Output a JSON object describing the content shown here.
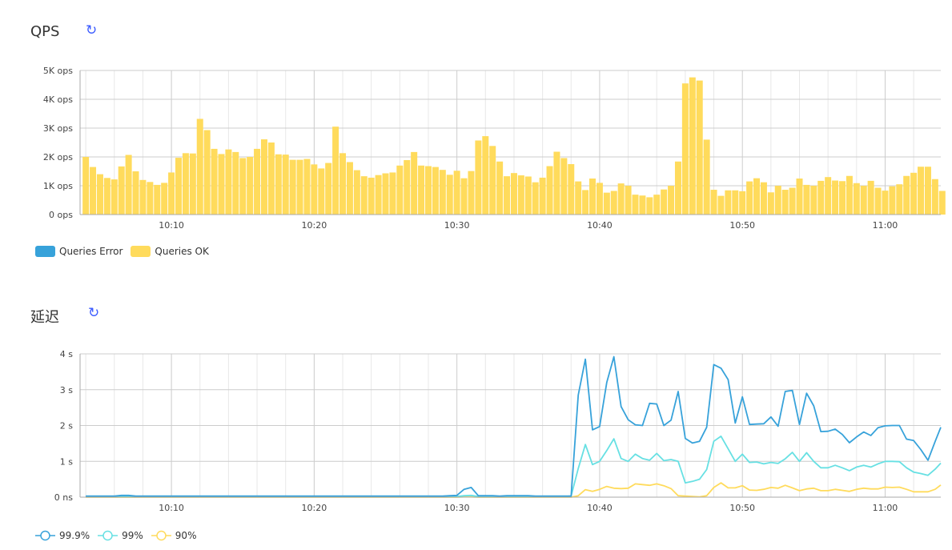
{
  "qps_panel": {
    "title": "QPS",
    "refresh_icon": "refresh-icon"
  },
  "latency_panel": {
    "title": "延迟",
    "refresh_icon": "refresh-icon"
  },
  "chart_data": [
    {
      "type": "bar",
      "title": "QPS",
      "x_ticks": [
        "10:10",
        "10:20",
        "10:30",
        "10:40",
        "10:50",
        "11:00"
      ],
      "xlim": [
        "10:03:36",
        "11:03:54"
      ],
      "y_ticks": [
        {
          "v": 0,
          "label": "0 ops"
        },
        {
          "v": 1000,
          "label": "1K ops"
        },
        {
          "v": 2000,
          "label": "2K ops"
        },
        {
          "v": 3000,
          "label": "3K ops"
        },
        {
          "v": 4000,
          "label": "4K ops"
        },
        {
          "v": 5000,
          "label": "5K ops"
        }
      ],
      "ylim": [
        0,
        5000
      ],
      "grid": true,
      "legend_placement": "bottom-left",
      "series": [
        {
          "name": "Queries Error",
          "color": "#37a2da",
          "values": []
        },
        {
          "name": "Queries OK",
          "color": "#ffdb5c",
          "values": [
            2000,
            1650,
            1400,
            1270,
            1220,
            1670,
            2070,
            1500,
            1200,
            1130,
            1030,
            1100,
            1460,
            1970,
            2130,
            2120,
            3320,
            2930,
            2280,
            2100,
            2260,
            2170,
            1960,
            2000,
            2280,
            2610,
            2500,
            2090,
            2080,
            1900,
            1900,
            1930,
            1740,
            1600,
            1790,
            3050,
            2130,
            1820,
            1540,
            1330,
            1280,
            1370,
            1430,
            1460,
            1700,
            1890,
            2170,
            1700,
            1680,
            1650,
            1550,
            1380,
            1520,
            1260,
            1510,
            2570,
            2720,
            2380,
            1840,
            1330,
            1440,
            1360,
            1320,
            1120,
            1280,
            1680,
            2180,
            1960,
            1750,
            1150,
            850,
            1250,
            1100,
            760,
            820,
            1080,
            1000,
            690,
            660,
            600,
            690,
            870,
            1000,
            1840,
            4550,
            4760,
            4650,
            2600,
            860,
            650,
            840,
            840,
            810,
            1150,
            1260,
            1120,
            770,
            1000,
            860,
            930,
            1250,
            1030,
            1000,
            1170,
            1300,
            1180,
            1160,
            1340,
            1090,
            1000,
            1170,
            930,
            830,
            980,
            1050,
            1340,
            1450,
            1660,
            1660,
            1230,
            820
          ]
        }
      ]
    },
    {
      "type": "line",
      "title": "延迟",
      "x_ticks": [
        "10:10",
        "10:20",
        "10:30",
        "10:40",
        "10:50",
        "11:00"
      ],
      "xlim": [
        "10:03:36",
        "11:03:54"
      ],
      "y_ticks": [
        {
          "v": 0,
          "label": "0 ns"
        },
        {
          "v": 1,
          "label": "1 s"
        },
        {
          "v": 2,
          "label": "2 s"
        },
        {
          "v": 3,
          "label": "3 s"
        },
        {
          "v": 4,
          "label": "4 s"
        }
      ],
      "ylim": [
        0,
        4
      ],
      "unit": "s",
      "grid": true,
      "legend_placement": "bottom-left",
      "series": [
        {
          "name": "99.9%",
          "color": "#37a2da",
          "values": [
            0.03,
            0.03,
            0.03,
            0.03,
            0.03,
            0.05,
            0.05,
            0.03,
            0.03,
            0.03,
            0.03,
            0.03,
            0.03,
            0.03,
            0.03,
            0.03,
            0.03,
            0.03,
            0.03,
            0.03,
            0.03,
            0.03,
            0.03,
            0.03,
            0.03,
            0.03,
            0.03,
            0.03,
            0.03,
            0.03,
            0.03,
            0.03,
            0.03,
            0.03,
            0.03,
            0.03,
            0.03,
            0.03,
            0.03,
            0.03,
            0.03,
            0.03,
            0.03,
            0.03,
            0.03,
            0.03,
            0.03,
            0.03,
            0.03,
            0.03,
            0.03,
            0.04,
            0.05,
            0.22,
            0.27,
            0.04,
            0.04,
            0.04,
            0.03,
            0.04,
            0.04,
            0.04,
            0.04,
            0.03,
            0.03,
            0.03,
            0.03,
            0.03,
            0.03,
            2.85,
            3.85,
            1.88,
            1.97,
            3.2,
            3.92,
            2.53,
            2.16,
            2.02,
            2.0,
            2.62,
            2.6,
            2.0,
            2.15,
            2.95,
            1.64,
            1.51,
            1.56,
            1.95,
            3.7,
            3.6,
            3.28,
            2.07,
            2.8,
            2.03,
            2.04,
            2.05,
            2.24,
            1.98,
            2.95,
            2.98,
            2.03,
            2.9,
            2.55,
            1.83,
            1.84,
            1.9,
            1.75,
            1.52,
            1.68,
            1.82,
            1.72,
            1.94,
            1.99,
            2.0,
            2.0,
            1.62,
            1.58,
            1.33,
            1.03,
            1.55,
            1.95
          ]
        },
        {
          "name": "99%",
          "color": "#67e0e3",
          "values": [
            0.02,
            0.02,
            0.02,
            0.02,
            0.02,
            0.02,
            0.02,
            0.02,
            0.02,
            0.02,
            0.02,
            0.02,
            0.02,
            0.02,
            0.02,
            0.02,
            0.02,
            0.02,
            0.02,
            0.02,
            0.02,
            0.02,
            0.02,
            0.02,
            0.02,
            0.02,
            0.02,
            0.02,
            0.02,
            0.02,
            0.02,
            0.02,
            0.02,
            0.02,
            0.02,
            0.02,
            0.02,
            0.02,
            0.02,
            0.02,
            0.02,
            0.02,
            0.02,
            0.02,
            0.02,
            0.02,
            0.02,
            0.02,
            0.02,
            0.02,
            0.02,
            0.02,
            0.02,
            0.04,
            0.05,
            0.02,
            0.02,
            0.02,
            0.02,
            0.02,
            0.02,
            0.02,
            0.02,
            0.02,
            0.02,
            0.02,
            0.02,
            0.02,
            0.03,
            0.8,
            1.47,
            0.91,
            1.0,
            1.3,
            1.63,
            1.08,
            1.0,
            1.2,
            1.08,
            1.03,
            1.22,
            1.02,
            1.05,
            1.0,
            0.4,
            0.44,
            0.5,
            0.77,
            1.56,
            1.7,
            1.35,
            1.0,
            1.2,
            0.97,
            0.98,
            0.93,
            0.97,
            0.94,
            1.07,
            1.25,
            1.0,
            1.24,
            1.0,
            0.82,
            0.82,
            0.89,
            0.82,
            0.74,
            0.84,
            0.89,
            0.84,
            0.93,
            1.0,
            1.0,
            0.99,
            0.82,
            0.7,
            0.66,
            0.61,
            0.78,
            0.95
          ]
        },
        {
          "name": "90%",
          "color": "#ffdb5c",
          "values": [
            0,
            0,
            0,
            0,
            0,
            0,
            0,
            0,
            0,
            0,
            0,
            0,
            0,
            0,
            0,
            0,
            0,
            0,
            0,
            0,
            0,
            0,
            0,
            0,
            0,
            0,
            0,
            0,
            0,
            0,
            0,
            0,
            0,
            0,
            0,
            0,
            0,
            0,
            0,
            0,
            0,
            0,
            0,
            0,
            0,
            0,
            0,
            0,
            0,
            0,
            0,
            0,
            0,
            0.01,
            0.01,
            0,
            0,
            0,
            0,
            0,
            0,
            0,
            0,
            0,
            0,
            0,
            0,
            0,
            0,
            0.04,
            0.21,
            0.16,
            0.22,
            0.3,
            0.25,
            0.24,
            0.25,
            0.37,
            0.35,
            0.33,
            0.37,
            0.32,
            0.24,
            0.04,
            0.03,
            0.02,
            0.01,
            0.04,
            0.27,
            0.4,
            0.26,
            0.26,
            0.32,
            0.2,
            0.19,
            0.22,
            0.27,
            0.25,
            0.33,
            0.26,
            0.18,
            0.23,
            0.25,
            0.18,
            0.18,
            0.22,
            0.19,
            0.16,
            0.22,
            0.25,
            0.23,
            0.23,
            0.28,
            0.27,
            0.28,
            0.22,
            0.15,
            0.15,
            0.15,
            0.22,
            0.34
          ]
        }
      ]
    }
  ],
  "x_times": [
    "10:04:00",
    "10:04:30",
    "10:05:00",
    "10:05:30",
    "10:06:00",
    "10:06:30",
    "10:07:00",
    "10:07:30",
    "10:08:00",
    "10:08:30",
    "10:09:00",
    "10:09:30",
    "10:10:00",
    "10:10:30",
    "10:11:00",
    "10:11:30",
    "10:12:00",
    "10:12:30",
    "10:13:00",
    "10:13:30",
    "10:14:00",
    "10:14:30",
    "10:15:00",
    "10:15:30",
    "10:16:00",
    "10:16:30",
    "10:17:00",
    "10:17:30",
    "10:18:00",
    "10:18:30",
    "10:19:00",
    "10:19:30",
    "10:20:00",
    "10:20:30",
    "10:21:00",
    "10:21:30",
    "10:22:00",
    "10:22:30",
    "10:23:00",
    "10:23:30",
    "10:24:00",
    "10:24:30",
    "10:25:00",
    "10:25:30",
    "10:26:00",
    "10:26:30",
    "10:27:00",
    "10:27:30",
    "10:28:00",
    "10:28:30",
    "10:29:00",
    "10:29:30",
    "10:30:00",
    "10:30:30",
    "10:31:00",
    "10:31:30",
    "10:32:00",
    "10:32:30",
    "10:33:00",
    "10:33:30",
    "10:34:00",
    "10:34:30",
    "10:35:00",
    "10:35:30",
    "10:36:00",
    "10:36:30",
    "10:37:00",
    "10:37:30",
    "10:38:00",
    "10:38:30",
    "10:39:00",
    "10:39:30",
    "10:40:00",
    "10:40:30",
    "10:41:00",
    "10:41:30",
    "10:42:00",
    "10:42:30",
    "10:43:00",
    "10:43:30",
    "10:44:00",
    "10:44:30",
    "10:45:00",
    "10:45:30",
    "10:46:00",
    "10:46:30",
    "10:47:00",
    "10:47:30",
    "10:48:00",
    "10:48:30",
    "10:49:00",
    "10:49:30",
    "10:50:00",
    "10:50:30",
    "10:51:00",
    "10:51:30",
    "10:52:00",
    "10:52:30",
    "10:53:00",
    "10:53:30",
    "10:54:00",
    "10:54:30",
    "10:55:00",
    "10:55:30",
    "10:56:00",
    "10:56:30",
    "10:57:00",
    "10:57:30",
    "10:58:00",
    "10:58:30",
    "10:59:00",
    "10:59:30",
    "11:00:00",
    "11:00:30",
    "11:01:00",
    "11:01:30",
    "11:02:00",
    "11:02:30",
    "11:03:00",
    "11:03:30",
    "11:04:00"
  ]
}
